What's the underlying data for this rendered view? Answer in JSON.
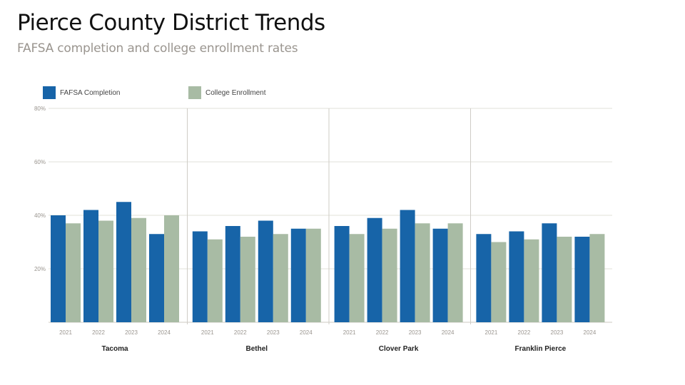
{
  "header": {
    "title": "Pierce County District Trends",
    "subtitle": "FAFSA completion and college enrollment rates"
  },
  "chart_data": {
    "type": "bar",
    "title": "Pierce County District Trends",
    "subtitle": "FAFSA completion and college enrollment rates",
    "groups": [
      "Tacoma",
      "Bethel",
      "Clover Park",
      "Franklin Pierce"
    ],
    "categories": [
      "2021",
      "2022",
      "2023",
      "2024"
    ],
    "series": [
      {
        "name": "FAFSA Completion",
        "color": "#1764a8",
        "values": [
          [
            40,
            42,
            45,
            33
          ],
          [
            34,
            36,
            38,
            35
          ],
          [
            36,
            39,
            42,
            35
          ],
          [
            33,
            34,
            37,
            32
          ]
        ]
      },
      {
        "name": "College Enrollment",
        "color": "#a8bba4",
        "values": [
          [
            37,
            38,
            39,
            40
          ],
          [
            31,
            32,
            33,
            35
          ],
          [
            33,
            35,
            37,
            37
          ],
          [
            30,
            31,
            32,
            33
          ]
        ]
      }
    ],
    "yticks": [
      "20%",
      "40%",
      "60%",
      "80%"
    ],
    "ytick_values": [
      20,
      40,
      60,
      80
    ],
    "ylim": [
      0,
      80
    ],
    "grid": true,
    "legend_position": "top-left",
    "xlabel": "",
    "ylabel": ""
  }
}
